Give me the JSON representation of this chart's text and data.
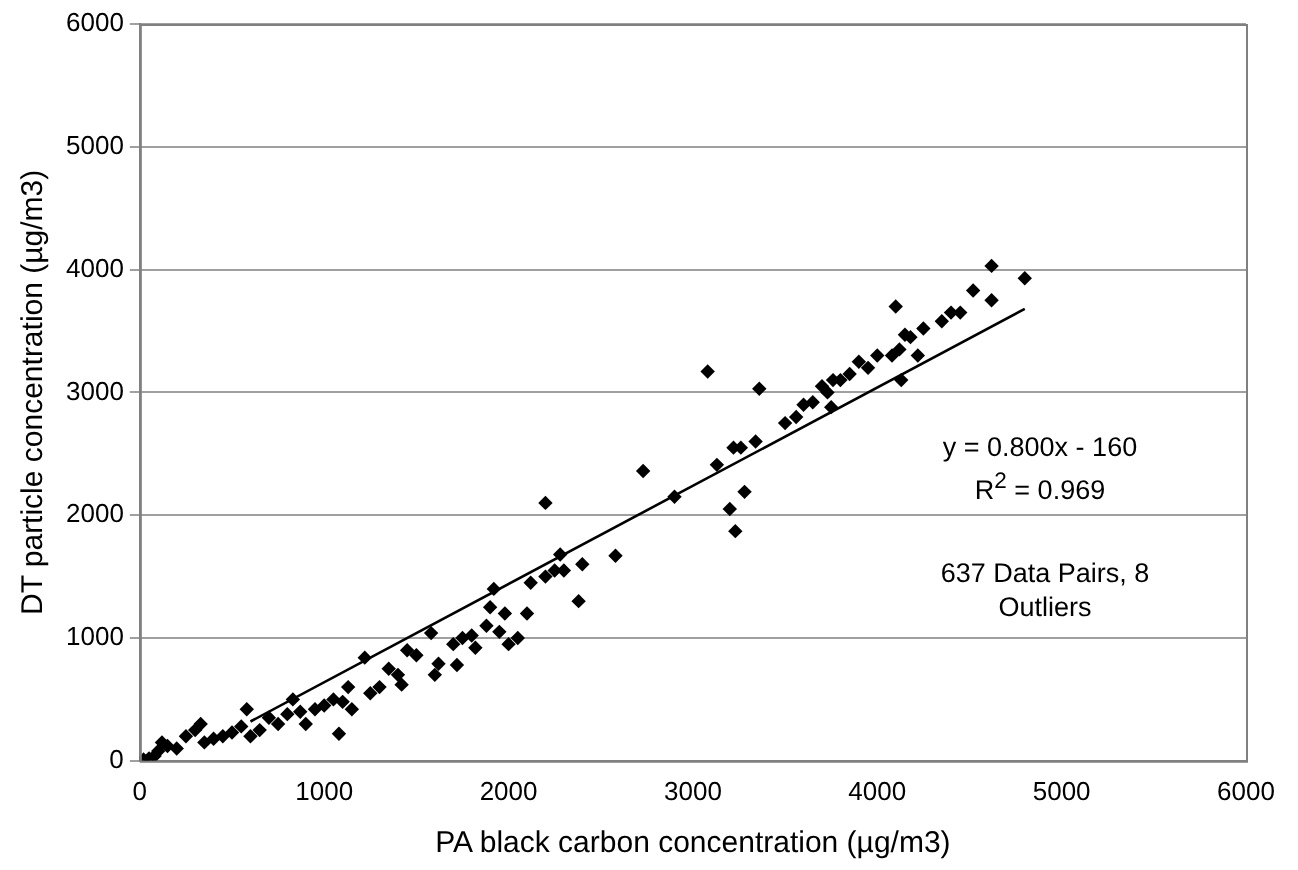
{
  "chart_data": {
    "type": "scatter",
    "xlabel": "PA black carbon concentration (µg/m3)",
    "ylabel": "DT particle concentration (µg/m3)",
    "xlim": [
      0,
      6000
    ],
    "xticks": [
      0,
      1000,
      2000,
      3000,
      4000,
      5000,
      6000
    ],
    "ylim": [
      0,
      6000
    ],
    "yticks": [
      0,
      1000,
      2000,
      3000,
      4000,
      5000,
      6000
    ],
    "grid": "y",
    "marker": "diamond",
    "legend": false,
    "annotations": [
      "y = 0.800x - 160",
      "R$^{2}$ = 0.969",
      "637 Data Pairs, 8 Outliers"
    ],
    "series": [
      {
        "color": "#000000",
        "x": [
          20,
          50,
          80,
          100,
          120,
          150,
          200,
          250,
          300,
          330,
          350,
          400,
          450,
          500,
          550,
          580,
          600,
          650,
          700,
          750,
          800,
          830,
          870,
          900,
          950,
          1000,
          1050,
          1080,
          1100,
          1130,
          1150,
          1220,
          1250,
          1300,
          1350,
          1400,
          1420,
          1450,
          1500,
          1580,
          1600,
          1620,
          1700,
          1720,
          1750,
          1800,
          1820,
          1880,
          1900,
          1920,
          1950,
          1980,
          2000,
          2050,
          2100,
          2120,
          2200,
          2200,
          2250,
          2280,
          2300,
          2380,
          2400,
          2580,
          2730,
          2900,
          3080,
          3130,
          3200,
          3220,
          3230,
          3260,
          3280,
          3340,
          3360,
          3500,
          3560,
          3600,
          3650,
          3700,
          3730,
          3750,
          3760,
          3800,
          3850,
          3900,
          3950,
          4000,
          4080,
          4100,
          4120,
          4130,
          4150,
          4180,
          4220,
          4250,
          4350,
          4400,
          4450,
          4520,
          4620,
          4620,
          4800
        ],
        "values": [
          10,
          20,
          40,
          80,
          150,
          120,
          100,
          200,
          250,
          300,
          150,
          180,
          200,
          230,
          280,
          420,
          200,
          250,
          350,
          300,
          380,
          500,
          400,
          300,
          420,
          450,
          500,
          220,
          480,
          600,
          420,
          840,
          550,
          600,
          750,
          700,
          620,
          900,
          860,
          1040,
          700,
          790,
          950,
          780,
          1000,
          1020,
          920,
          1100,
          1250,
          1400,
          1050,
          1200,
          950,
          1000,
          1200,
          1450,
          1500,
          2100,
          1550,
          1680,
          1550,
          1300,
          1600,
          1670,
          2360,
          2150,
          3170,
          2410,
          2050,
          2550,
          1870,
          2550,
          2190,
          2600,
          3030,
          2750,
          2800,
          2900,
          2920,
          3050,
          3000,
          2880,
          3100,
          3100,
          3150,
          3250,
          3200,
          3300,
          3300,
          3700,
          3350,
          3100,
          3470,
          3450,
          3300,
          3520,
          3580,
          3650,
          3650,
          3830,
          4030,
          3750,
          3930
        ]
      },
      {
        "type": "line",
        "color": "#000000",
        "marker": "none",
        "x": [
          600,
          4800
        ],
        "values": [
          320,
          3680
        ]
      }
    ]
  }
}
